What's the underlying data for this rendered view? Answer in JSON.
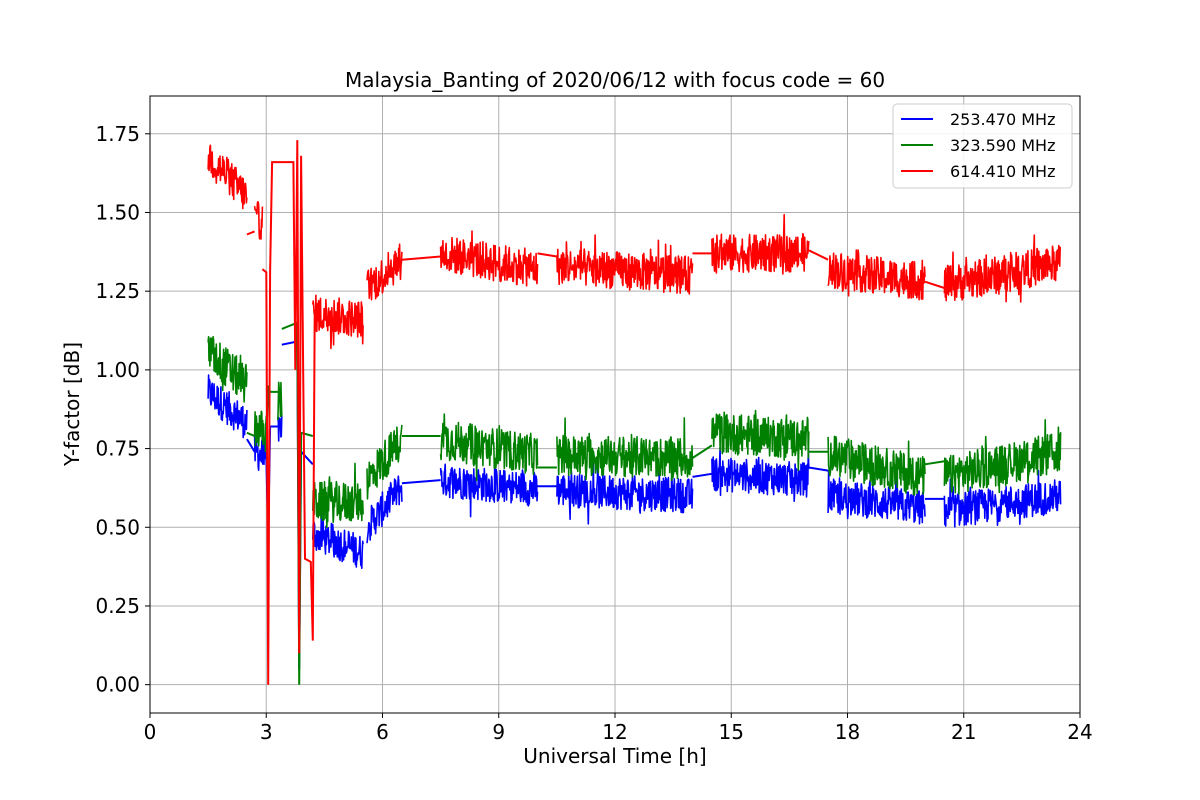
{
  "chart_data": {
    "type": "line",
    "title": "Malaysia_Banting of 2020/06/12 with focus code = 60",
    "xlabel": "Universal Time [h]",
    "ylabel": "Y-factor [dB]",
    "xlim": [
      0,
      24
    ],
    "ylim": [
      -0.09,
      1.87
    ],
    "xticks": [
      0,
      3,
      6,
      9,
      12,
      15,
      18,
      21,
      24
    ],
    "xtick_labels": [
      "0",
      "3",
      "6",
      "9",
      "12",
      "15",
      "18",
      "21",
      "24"
    ],
    "yticks": [
      0.0,
      0.25,
      0.5,
      0.75,
      1.0,
      1.25,
      1.5,
      1.75
    ],
    "ytick_labels": [
      "0.00",
      "0.25",
      "0.50",
      "0.75",
      "1.00",
      "1.25",
      "1.50",
      "1.75"
    ],
    "grid": true,
    "legend_position": "upper right",
    "series": [
      {
        "name": "253.470 MHz",
        "color": "#0000ff",
        "noise": 0.055,
        "segments": [
          [
            [
              1.5,
              0.93
            ],
            [
              2.5,
              0.83
            ]
          ],
          [
            [
              2.7,
              0.74
            ],
            [
              3.0,
              0.72
            ]
          ],
          [
            [
              3.3,
              0.82
            ],
            [
              3.4,
              0.82
            ]
          ],
          [
            [
              4.2,
              0.48
            ],
            [
              5.5,
              0.42
            ]
          ],
          [
            [
              5.6,
              0.5
            ],
            [
              6.5,
              0.63
            ]
          ],
          [
            [
              7.5,
              0.65
            ],
            [
              10.0,
              0.62
            ]
          ],
          [
            [
              10.5,
              0.62
            ],
            [
              14.0,
              0.6
            ]
          ],
          [
            [
              14.5,
              0.67
            ],
            [
              17.0,
              0.65
            ]
          ],
          [
            [
              17.5,
              0.6
            ],
            [
              20.0,
              0.56
            ]
          ],
          [
            [
              20.5,
              0.55
            ],
            [
              23.5,
              0.6
            ]
          ]
        ],
        "connectors": [
          [
            [
              2.5,
              0.78
            ],
            [
              2.7,
              0.74
            ]
          ],
          [
            [
              3.0,
              0.72
            ],
            [
              3.05,
              0.47
            ],
            [
              3.1,
              0.82
            ],
            [
              3.35,
              0.82
            ]
          ],
          [
            [
              3.4,
              1.08
            ],
            [
              3.8,
              1.09
            ],
            [
              3.85,
              0.05
            ],
            [
              3.9,
              0.74
            ],
            [
              4.2,
              0.7
            ]
          ],
          [
            [
              6.5,
              0.64
            ],
            [
              7.5,
              0.65
            ]
          ],
          [
            [
              10.0,
              0.63
            ],
            [
              10.5,
              0.63
            ]
          ],
          [
            [
              14.0,
              0.66
            ],
            [
              14.5,
              0.67
            ]
          ],
          [
            [
              17.0,
              0.69
            ],
            [
              17.5,
              0.68
            ]
          ],
          [
            [
              20.0,
              0.59
            ],
            [
              20.5,
              0.59
            ]
          ]
        ]
      },
      {
        "name": "323.590 MHz",
        "color": "#008000",
        "noise": 0.065,
        "segments": [
          [
            [
              1.5,
              1.06
            ],
            [
              2.5,
              0.95
            ]
          ],
          [
            [
              2.7,
              0.82
            ],
            [
              3.0,
              0.8
            ]
          ],
          [
            [
              3.3,
              0.9
            ],
            [
              3.4,
              0.9
            ]
          ],
          [
            [
              4.2,
              0.58
            ],
            [
              5.5,
              0.58
            ]
          ],
          [
            [
              5.6,
              0.65
            ],
            [
              6.5,
              0.78
            ]
          ],
          [
            [
              7.5,
              0.78
            ],
            [
              10.0,
              0.73
            ]
          ],
          [
            [
              10.5,
              0.73
            ],
            [
              14.0,
              0.72
            ]
          ],
          [
            [
              14.5,
              0.8
            ],
            [
              17.0,
              0.78
            ]
          ],
          [
            [
              17.5,
              0.73
            ],
            [
              20.0,
              0.66
            ]
          ],
          [
            [
              20.5,
              0.66
            ],
            [
              23.5,
              0.74
            ]
          ]
        ],
        "connectors": [
          [
            [
              2.5,
              0.8
            ],
            [
              2.7,
              0.79
            ]
          ],
          [
            [
              3.0,
              0.78
            ],
            [
              3.05,
              0.95
            ],
            [
              3.1,
              0.93
            ],
            [
              3.35,
              0.93
            ]
          ],
          [
            [
              3.4,
              1.13
            ],
            [
              3.8,
              1.15
            ],
            [
              3.85,
              0.0
            ],
            [
              3.9,
              0.8
            ],
            [
              4.2,
              0.79
            ]
          ],
          [
            [
              6.5,
              0.79
            ],
            [
              7.5,
              0.79
            ]
          ],
          [
            [
              10.0,
              0.69
            ],
            [
              10.5,
              0.69
            ]
          ],
          [
            [
              14.0,
              0.72
            ],
            [
              14.5,
              0.76
            ]
          ],
          [
            [
              17.0,
              0.74
            ],
            [
              17.5,
              0.74
            ]
          ],
          [
            [
              20.0,
              0.7
            ],
            [
              20.5,
              0.71
            ]
          ]
        ]
      },
      {
        "name": "614.410 MHz",
        "color": "#ff0000",
        "noise": 0.06,
        "segments": [
          [
            [
              1.5,
              1.68
            ],
            [
              2.5,
              1.55
            ]
          ],
          [
            [
              2.7,
              1.48
            ],
            [
              2.9,
              1.47
            ]
          ],
          [
            [
              4.2,
              1.18
            ],
            [
              5.5,
              1.16
            ]
          ],
          [
            [
              5.6,
              1.26
            ],
            [
              6.5,
              1.35
            ]
          ],
          [
            [
              7.5,
              1.37
            ],
            [
              10.0,
              1.32
            ]
          ],
          [
            [
              10.5,
              1.33
            ],
            [
              14.0,
              1.3
            ]
          ],
          [
            [
              14.5,
              1.37
            ],
            [
              17.0,
              1.37
            ]
          ],
          [
            [
              17.5,
              1.32
            ],
            [
              20.0,
              1.28
            ]
          ],
          [
            [
              20.5,
              1.27
            ],
            [
              23.5,
              1.34
            ]
          ]
        ],
        "connectors": [
          [
            [
              2.5,
              1.43
            ],
            [
              2.7,
              1.44
            ]
          ],
          [
            [
              2.9,
              1.32
            ],
            [
              3.0,
              1.31
            ],
            [
              3.05,
              0.0
            ],
            [
              3.1,
              1.31
            ],
            [
              3.15,
              1.66
            ],
            [
              3.7,
              1.66
            ],
            [
              3.75,
              1.0
            ],
            [
              3.8,
              1.73
            ],
            [
              3.85,
              0.1
            ],
            [
              3.9,
              1.68
            ],
            [
              4.0,
              0.4
            ],
            [
              4.15,
              0.39
            ],
            [
              4.2,
              0.14
            ],
            [
              4.25,
              1.18
            ]
          ],
          [
            [
              6.5,
              1.35
            ],
            [
              7.5,
              1.36
            ]
          ],
          [
            [
              10.0,
              1.37
            ],
            [
              10.5,
              1.36
            ]
          ],
          [
            [
              14.0,
              1.37
            ],
            [
              14.5,
              1.37
            ]
          ],
          [
            [
              17.0,
              1.38
            ],
            [
              17.5,
              1.35
            ]
          ],
          [
            [
              20.0,
              1.28
            ],
            [
              20.5,
              1.26
            ]
          ]
        ]
      }
    ]
  }
}
